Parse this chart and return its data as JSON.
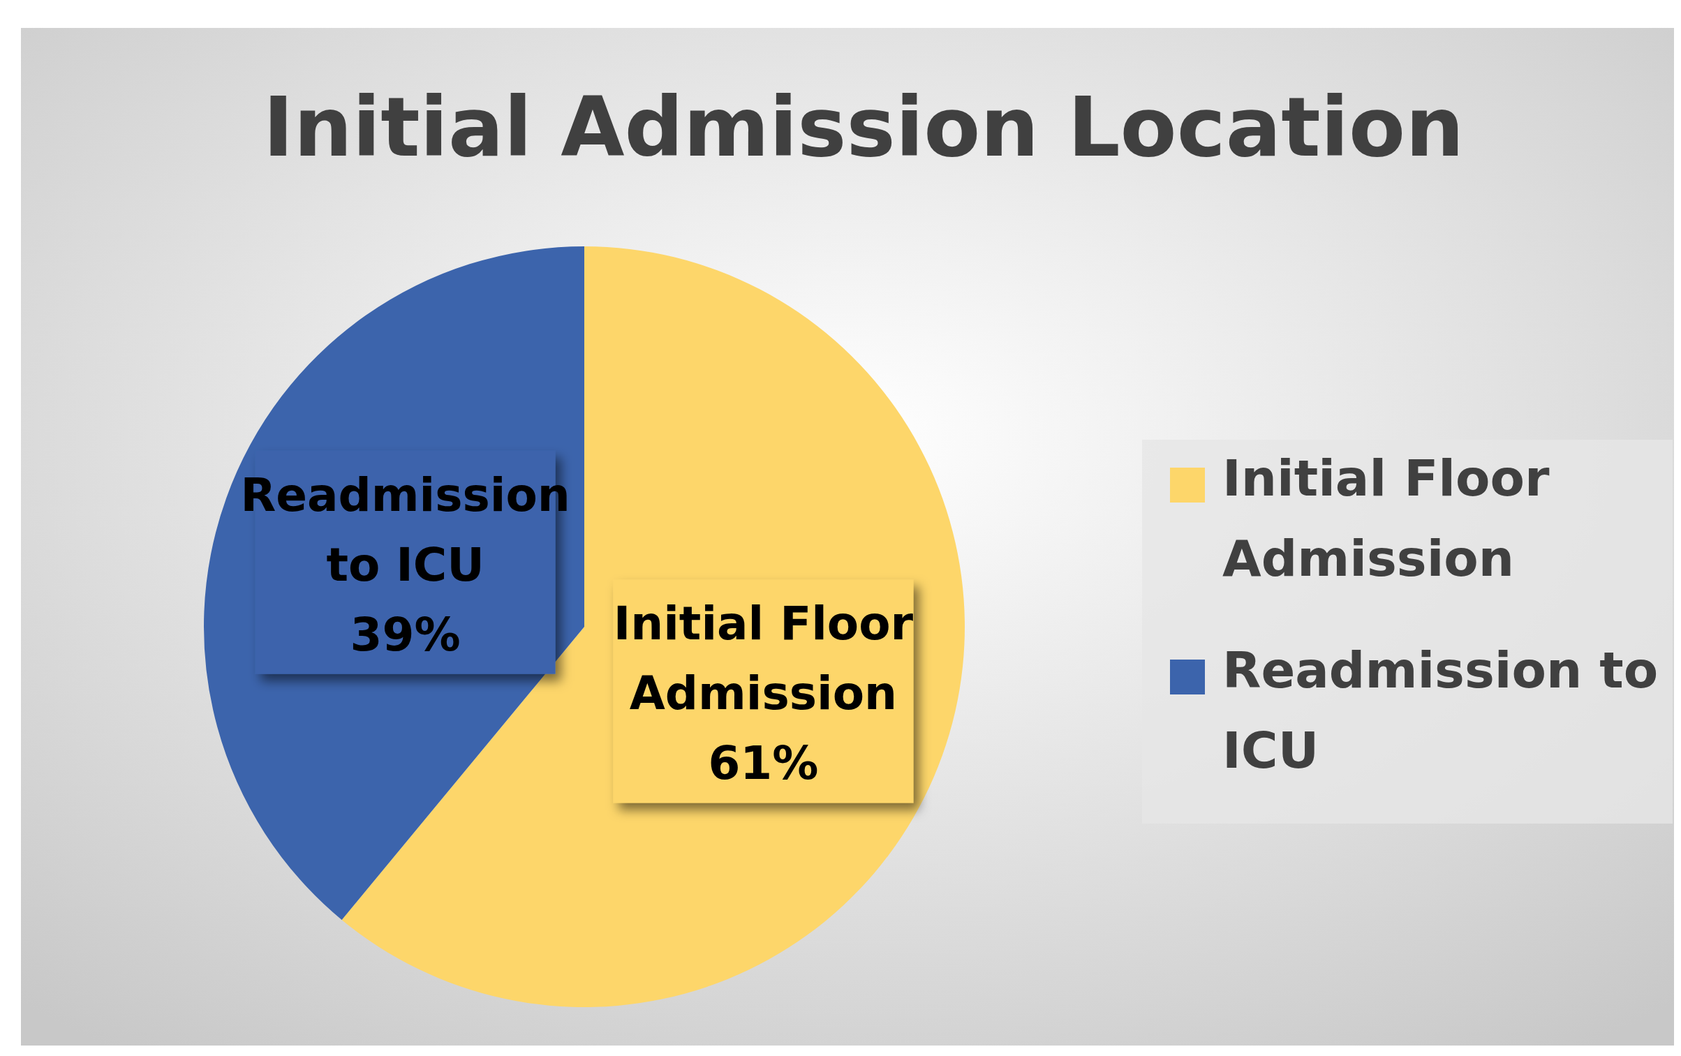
{
  "chart_data": {
    "type": "pie",
    "title": "Initial Admission Location",
    "categories": [
      "Initial Floor Admission",
      "Readmission to ICU"
    ],
    "values": [
      61,
      39
    ],
    "colors": [
      "#fdd66a",
      "#3c64ac"
    ],
    "value_labels": [
      "61%",
      "39%"
    ],
    "legend": "right"
  }
}
